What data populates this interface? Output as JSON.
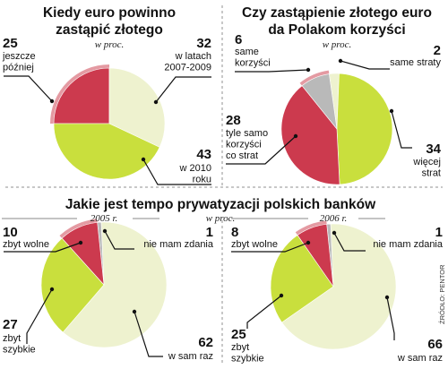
{
  "colors": {
    "red": "#cc3a4e",
    "light_red": "#e49aa2",
    "green": "#c9df3d",
    "cream": "#eef2cf",
    "gray": "#b9b9b9"
  },
  "source": "ŹRÓDŁO: PENTOR",
  "chart_data": [
    {
      "type": "pie",
      "title": "Kiedy euro powinno zastąpić złotego",
      "subtitle": "w proc.",
      "slices": [
        {
          "value": 25,
          "label": "jeszcze później",
          "label_lines": [
            "jeszcze",
            "później"
          ],
          "color": "red"
        },
        {
          "value": 32,
          "label": "w latach 2007-2009",
          "label_lines": [
            "w latach",
            "2007-2009"
          ],
          "color": "cream"
        },
        {
          "value": 43,
          "label": "w 2010 roku",
          "label_lines": [
            "w 2010",
            "roku"
          ],
          "color": "green"
        }
      ]
    },
    {
      "type": "pie",
      "title": "Czy zastąpienie złotego euro da Polakom korzyści",
      "subtitle": "w proc.",
      "slices": [
        {
          "value": 6,
          "label": "same korzyści",
          "label_lines": [
            "same",
            "korzyści"
          ],
          "color": "gray"
        },
        {
          "value": 2,
          "label": "same straty",
          "label_lines": [
            "same straty"
          ],
          "color": "cream"
        },
        {
          "value": 34,
          "label": "więcej strat",
          "label_lines": [
            "więcej",
            "strat"
          ],
          "color": "green"
        },
        {
          "value": 28,
          "label": "tyle samo korzyści co strat",
          "label_lines": [
            "tyle samo",
            "korzyści",
            "co strat"
          ],
          "color": "red"
        }
      ]
    },
    {
      "type": "pie",
      "title": "Jakie jest tempo prywatyzacji polskich banków",
      "subtitle": "w proc.",
      "year": "2005 r.",
      "slices": [
        {
          "value": 10,
          "label": "zbyt wolne",
          "label_lines": [
            "zbyt wolne"
          ],
          "color": "red"
        },
        {
          "value": 1,
          "label": "nie mam zdania",
          "label_lines": [
            "nie mam zdania"
          ],
          "color": "gray"
        },
        {
          "value": 62,
          "label": "w sam raz",
          "label_lines": [
            "w sam raz"
          ],
          "color": "cream"
        },
        {
          "value": 27,
          "label": "zbyt szybkie",
          "label_lines": [
            "zbyt",
            "szybkie"
          ],
          "color": "green"
        }
      ]
    },
    {
      "type": "pie",
      "year": "2006 r.",
      "slices": [
        {
          "value": 8,
          "label": "zbyt wolne",
          "label_lines": [
            "zbyt wolne"
          ],
          "color": "red"
        },
        {
          "value": 1,
          "label": "nie mam zdania",
          "label_lines": [
            "nie mam zdania"
          ],
          "color": "gray"
        },
        {
          "value": 66,
          "label": "w sam raz",
          "label_lines": [
            "w sam raz"
          ],
          "color": "cream"
        },
        {
          "value": 25,
          "label": "zbyt szybkie",
          "label_lines": [
            "zbyt",
            "szybkie"
          ],
          "color": "green"
        }
      ]
    }
  ]
}
